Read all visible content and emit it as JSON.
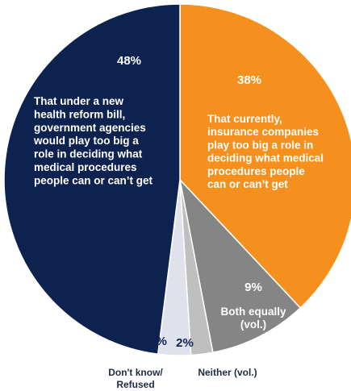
{
  "chart_data": {
    "type": "pie",
    "slices": [
      {
        "key": "insurance",
        "value": 38,
        "value_label": "38%",
        "label_lines": [
          "That currently,",
          "insurance companies",
          "play too big a role in",
          "deciding what medical",
          "procedures people",
          "can or can’t get"
        ],
        "color": "#f5901e"
      },
      {
        "key": "both",
        "value": 9,
        "value_label": "9%",
        "label_lines": [
          "Both equally",
          "(vol.)"
        ],
        "color": "#858585"
      },
      {
        "key": "neither",
        "value": 2,
        "value_label": "2%",
        "label_lines": [
          "Neither (vol.)"
        ],
        "color": "#bfbfbf"
      },
      {
        "key": "dontknow",
        "value": 3,
        "value_label": "3%",
        "label_lines": [
          "Don't know/",
          "Refused"
        ],
        "color": "#dfe1ec"
      },
      {
        "key": "government",
        "value": 48,
        "value_label": "48%",
        "label_lines": [
          "That under a new",
          "health reform bill,",
          "government agencies",
          "would play too big a",
          "role in deciding what",
          "medical procedures",
          "people can or can’t get"
        ],
        "color": "#0e2250"
      }
    ],
    "start_angle_deg": 0,
    "direction": "clockwise",
    "legend": "none"
  }
}
